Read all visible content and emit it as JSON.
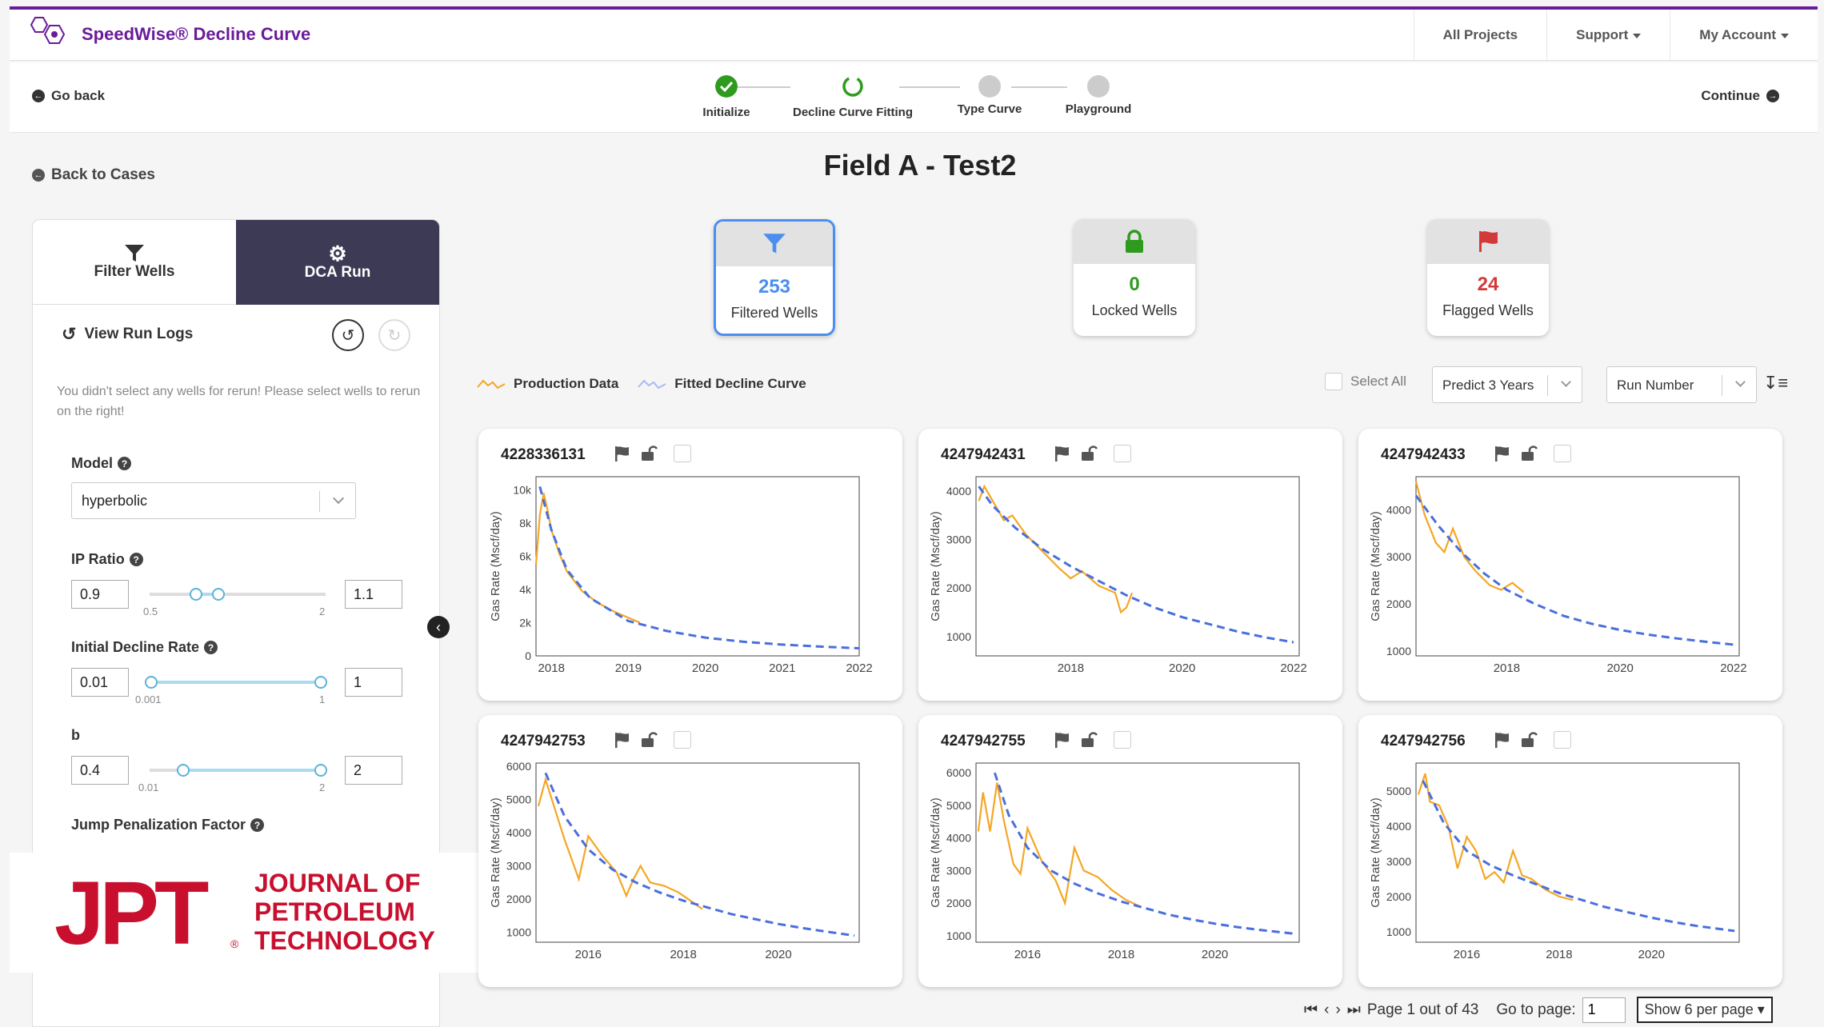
{
  "app": {
    "title": "SpeedWise® Decline Curve",
    "accent": "#6a1b9a"
  },
  "topnav": [
    {
      "label": "All Projects"
    },
    {
      "label": "Support"
    },
    {
      "label": "My Account"
    }
  ],
  "stepbar": {
    "back": "Go back",
    "continue": "Continue",
    "steps": [
      {
        "label": "Initialize",
        "state": "done"
      },
      {
        "label": "Decline Curve Fitting",
        "state": "active"
      },
      {
        "label": "Type Curve",
        "state": "pending"
      },
      {
        "label": "Playground",
        "state": "pending"
      }
    ]
  },
  "back_to_cases": "Back to Cases",
  "page_title": "Field A - Test2",
  "left_panel": {
    "tabs": [
      {
        "label": "Filter Wells",
        "icon": "filter-icon"
      },
      {
        "label": "DCA Run",
        "icon": "gear-icon"
      }
    ],
    "run_logs": "View Run Logs",
    "note": "You didn't select any wells for rerun! Please select wells to rerun on the right!",
    "model": {
      "label": "Model",
      "value": "hyperbolic"
    },
    "ip_ratio": {
      "label": "IP Ratio",
      "min_value": "0.9",
      "max_value": "1.1",
      "range_min": "0.5",
      "range_max": "2"
    },
    "initial_decline": {
      "label": "Initial Decline Rate",
      "min_value": "0.01",
      "max_value": "1",
      "range_min": "0.001",
      "range_max": "1"
    },
    "b": {
      "label": "b",
      "min_value": "0.4",
      "max_value": "2",
      "range_min": "0.01",
      "range_max": "2"
    },
    "jump": {
      "label": "Jump Penalization Factor"
    }
  },
  "watermark": {
    "letters": "JPT",
    "line1": "JOURNAL OF",
    "line2": "PETROLEUM",
    "line3": "TECHNOLOGY",
    "reg": "®"
  },
  "stats": [
    {
      "value": "253",
      "label": "Filtered Wells",
      "color": "#4a8ef0",
      "icon": "filter-icon"
    },
    {
      "value": "0",
      "label": "Locked Wells",
      "color": "#2e9b1e",
      "icon": "lock-icon"
    },
    {
      "value": "24",
      "label": "Flagged Wells",
      "color": "#d23a3a",
      "icon": "flag-icon"
    }
  ],
  "legend": {
    "production": "Production Data",
    "fitted": "Fitted Decline Curve"
  },
  "controls": {
    "select_all": "Select All",
    "predict": "Predict 3 Years",
    "sort": "Run Number"
  },
  "colors": {
    "production": "#f5a623",
    "fitted": "#4a6fdc"
  },
  "wells": [
    {
      "id": "4228336131",
      "ylabel": "Gas Rate (Mscf/day)"
    },
    {
      "id": "4247942431",
      "ylabel": "Gas Rate (Mscf/day)"
    },
    {
      "id": "4247942433",
      "ylabel": "Gas Rate (Mscf/day)"
    },
    {
      "id": "4247942753",
      "ylabel": "Gas Rate (Mscf/day)"
    },
    {
      "id": "4247942755",
      "ylabel": "Gas Rate (Mscf/day)"
    },
    {
      "id": "4247942756",
      "ylabel": "Gas Rate (Mscf/day)"
    }
  ],
  "chart_data": [
    {
      "type": "line",
      "title": "4228336131",
      "ylabel": "Gas Rate (Mscf/day)",
      "xlim": [
        2017.8,
        2022.0
      ],
      "ylim": [
        0,
        10800
      ],
      "xticks": [
        "2018",
        "2019",
        "2020",
        "2021",
        "2022"
      ],
      "xtick_values": [
        2018,
        2019,
        2020,
        2021,
        2022
      ],
      "yticks": [
        "0",
        "2k",
        "4k",
        "6k",
        "8k",
        "10k"
      ],
      "ytick_values": [
        0,
        2000,
        4000,
        6000,
        8000,
        10000
      ],
      "series": [
        {
          "name": "Production Data",
          "x": [
            2017.8,
            2017.85,
            2017.9,
            2017.95,
            2018.0,
            2018.1,
            2018.2,
            2018.4,
            2018.6,
            2018.8,
            2019.0,
            2019.15
          ],
          "y": [
            5500,
            8500,
            9800,
            8800,
            7600,
            6200,
            5100,
            3900,
            3200,
            2700,
            2300,
            2000
          ]
        },
        {
          "name": "Fitted Decline Curve",
          "x": [
            2017.85,
            2018.0,
            2018.2,
            2018.5,
            2019.0,
            2019.5,
            2020.0,
            2020.5,
            2021.0,
            2021.5,
            2022.0
          ],
          "y": [
            10200,
            7600,
            5200,
            3500,
            2100,
            1500,
            1100,
            850,
            680,
            560,
            460
          ]
        }
      ]
    },
    {
      "type": "line",
      "title": "4247942431",
      "ylabel": "Gas Rate (Mscf/day)",
      "xlim": [
        2016.3,
        2022.1
      ],
      "ylim": [
        600,
        4300
      ],
      "xticks": [
        "2018",
        "2020",
        "2022"
      ],
      "xtick_values": [
        2018,
        2020,
        2022
      ],
      "yticks": [
        "1000",
        "2000",
        "3000",
        "4000"
      ],
      "ytick_values": [
        1000,
        2000,
        3000,
        4000
      ],
      "series": [
        {
          "name": "Production Data",
          "x": [
            2016.35,
            2016.45,
            2016.6,
            2016.8,
            2016.95,
            2017.2,
            2017.5,
            2017.8,
            2018.0,
            2018.2,
            2018.5,
            2018.8,
            2018.9,
            2019.0,
            2019.1
          ],
          "y": [
            3800,
            4100,
            3800,
            3400,
            3500,
            3100,
            2750,
            2400,
            2200,
            2350,
            2050,
            1900,
            1500,
            1600,
            1900
          ]
        },
        {
          "name": "Fitted Decline Curve",
          "x": [
            2016.35,
            2016.6,
            2017.0,
            2017.5,
            2018.0,
            2018.5,
            2019.0,
            2019.5,
            2020.0,
            2020.5,
            2021.0,
            2021.5,
            2022.0
          ],
          "y": [
            4100,
            3700,
            3250,
            2800,
            2450,
            2150,
            1850,
            1600,
            1400,
            1250,
            1100,
            980,
            880
          ]
        }
      ]
    },
    {
      "type": "line",
      "title": "4247942433",
      "ylabel": "Gas Rate (Mscf/day)",
      "xlim": [
        2016.4,
        2022.1
      ],
      "ylim": [
        900,
        4700
      ],
      "xticks": [
        "2018",
        "2020",
        "2022"
      ],
      "xtick_values": [
        2018,
        2020,
        2022
      ],
      "yticks": [
        "1000",
        "2000",
        "3000",
        "4000"
      ],
      "ytick_values": [
        1000,
        2000,
        3000,
        4000
      ],
      "series": [
        {
          "name": "Production Data",
          "x": [
            2016.4,
            2016.55,
            2016.75,
            2016.9,
            2017.05,
            2017.25,
            2017.45,
            2017.7,
            2017.9,
            2018.1,
            2018.3
          ],
          "y": [
            4600,
            3900,
            3300,
            3100,
            3600,
            3000,
            2700,
            2400,
            2300,
            2450,
            2250
          ]
        },
        {
          "name": "Fitted Decline Curve",
          "x": [
            2016.4,
            2016.8,
            2017.2,
            2017.6,
            2018.0,
            2018.5,
            2019.0,
            2019.5,
            2020.0,
            2020.5,
            2021.0,
            2021.5,
            2022.0
          ],
          "y": [
            4300,
            3650,
            3100,
            2650,
            2300,
            2000,
            1750,
            1580,
            1450,
            1350,
            1270,
            1200,
            1140
          ]
        }
      ]
    },
    {
      "type": "line",
      "title": "4247942753",
      "ylabel": "Gas Rate (Mscf/day)",
      "xlim": [
        2014.9,
        2021.7
      ],
      "ylim": [
        700,
        6100
      ],
      "xticks": [
        "2016",
        "2018",
        "2020"
      ],
      "xtick_values": [
        2016,
        2018,
        2020
      ],
      "yticks": [
        "1000",
        "2000",
        "3000",
        "4000",
        "5000",
        "6000"
      ],
      "ytick_values": [
        1000,
        2000,
        3000,
        4000,
        5000,
        6000
      ],
      "series": [
        {
          "name": "Production Data",
          "x": [
            2014.95,
            2015.1,
            2015.3,
            2015.5,
            2015.65,
            2015.8,
            2016.0,
            2016.3,
            2016.6,
            2016.8,
            2016.95,
            2017.1,
            2017.3,
            2017.6,
            2017.9,
            2018.2,
            2018.4
          ],
          "y": [
            4800,
            5600,
            4700,
            3800,
            3200,
            2600,
            3900,
            3300,
            2800,
            2100,
            2600,
            3000,
            2500,
            2400,
            2200,
            1900,
            1700
          ]
        },
        {
          "name": "Fitted Decline Curve",
          "x": [
            2015.1,
            2015.5,
            2016.0,
            2016.5,
            2017.0,
            2017.5,
            2018.0,
            2018.5,
            2019.0,
            2019.5,
            2020.0,
            2020.5,
            2021.0,
            2021.6
          ],
          "y": [
            5800,
            4500,
            3500,
            2900,
            2500,
            2200,
            1950,
            1750,
            1550,
            1400,
            1250,
            1130,
            1020,
            900
          ]
        }
      ]
    },
    {
      "type": "line",
      "title": "4247942755",
      "ylabel": "Gas Rate (Mscf/day)",
      "xlim": [
        2014.9,
        2021.8
      ],
      "ylim": [
        800,
        6300
      ],
      "xticks": [
        "2016",
        "2018",
        "2020"
      ],
      "xtick_values": [
        2016,
        2018,
        2020
      ],
      "yticks": [
        "1000",
        "2000",
        "3000",
        "4000",
        "5000",
        "6000"
      ],
      "ytick_values": [
        1000,
        2000,
        3000,
        4000,
        5000,
        6000
      ],
      "series": [
        {
          "name": "Production Data",
          "x": [
            2014.95,
            2015.05,
            2015.2,
            2015.35,
            2015.5,
            2015.7,
            2015.85,
            2016.0,
            2016.3,
            2016.6,
            2016.8,
            2017.0,
            2017.2,
            2017.5,
            2017.8,
            2018.1,
            2018.4
          ],
          "y": [
            4200,
            5400,
            4200,
            5700,
            4500,
            3200,
            2900,
            4300,
            3300,
            2700,
            2000,
            3700,
            3000,
            2800,
            2400,
            2100,
            1900
          ]
        },
        {
          "name": "Fitted Decline Curve",
          "x": [
            2015.3,
            2015.6,
            2016.0,
            2016.5,
            2017.0,
            2017.5,
            2018.0,
            2018.5,
            2019.0,
            2019.5,
            2020.0,
            2020.5,
            2021.0,
            2021.7
          ],
          "y": [
            6000,
            4700,
            3700,
            3000,
            2600,
            2300,
            2050,
            1850,
            1650,
            1500,
            1370,
            1260,
            1170,
            1060
          ]
        }
      ]
    },
    {
      "type": "line",
      "title": "4247942756",
      "ylabel": "Gas Rate (Mscf/day)",
      "xlim": [
        2014.9,
        2021.9
      ],
      "ylim": [
        700,
        5800
      ],
      "xticks": [
        "2016",
        "2018",
        "2020"
      ],
      "xtick_values": [
        2016,
        2018,
        2020
      ],
      "yticks": [
        "1000",
        "2000",
        "3000",
        "4000",
        "5000"
      ],
      "ytick_values": [
        1000,
        2000,
        3000,
        4000,
        5000
      ],
      "series": [
        {
          "name": "Production Data",
          "x": [
            2014.95,
            2015.1,
            2015.2,
            2015.4,
            2015.6,
            2015.8,
            2016.0,
            2016.2,
            2016.4,
            2016.6,
            2016.8,
            2017.0,
            2017.2,
            2017.4,
            2017.7,
            2018.0,
            2018.3
          ],
          "y": [
            4900,
            5500,
            4700,
            4600,
            4000,
            2800,
            3700,
            3300,
            2500,
            2700,
            2400,
            3300,
            2600,
            2500,
            2200,
            2000,
            1900
          ]
        },
        {
          "name": "Fitted Decline Curve",
          "x": [
            2015.05,
            2015.5,
            2016.0,
            2016.5,
            2017.0,
            2017.5,
            2018.0,
            2018.5,
            2019.0,
            2019.5,
            2020.0,
            2020.5,
            2021.0,
            2021.8
          ],
          "y": [
            5300,
            4100,
            3300,
            2900,
            2600,
            2350,
            2100,
            1900,
            1700,
            1550,
            1400,
            1270,
            1160,
            1020
          ]
        }
      ]
    }
  ],
  "pager": {
    "text": "Page 1 out of 43",
    "goto": "Go to page:",
    "page": "1",
    "per_page": "Show 6 per page"
  }
}
